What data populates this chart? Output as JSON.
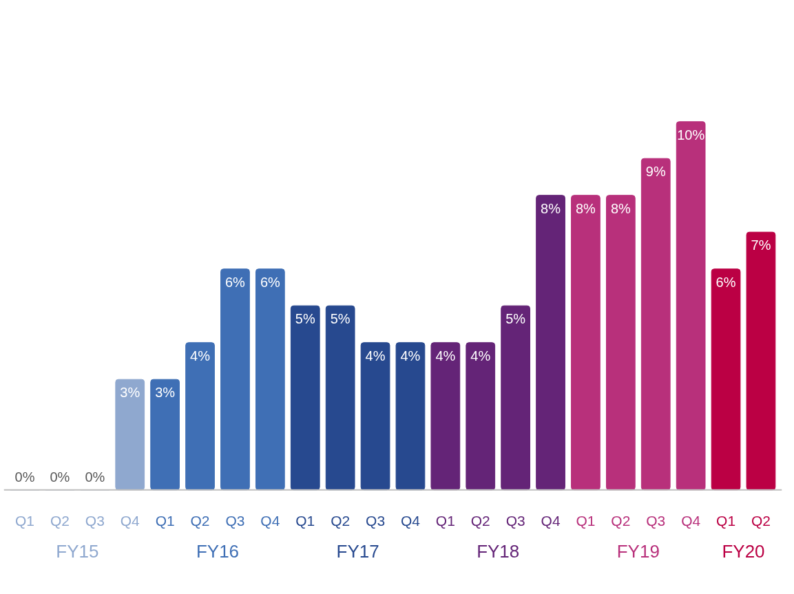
{
  "chart_data": {
    "type": "bar",
    "categories": [
      "Q1",
      "Q2",
      "Q3",
      "Q4",
      "Q1",
      "Q2",
      "Q3",
      "Q4",
      "Q1",
      "Q2",
      "Q3",
      "Q4",
      "Q1",
      "Q2",
      "Q3",
      "Q4",
      "Q1",
      "Q2",
      "Q3",
      "Q4",
      "Q1",
      "Q2"
    ],
    "values": [
      0,
      0,
      0,
      3,
      3,
      4,
      6,
      6,
      5,
      5,
      4,
      4,
      4,
      4,
      5,
      8,
      8,
      8,
      9,
      10,
      6,
      7
    ],
    "value_labels": [
      "0%",
      "0%",
      "0%",
      "3%",
      "3%",
      "4%",
      "6%",
      "6%",
      "5%",
      "5%",
      "4%",
      "4%",
      "4%",
      "4%",
      "5%",
      "8%",
      "8%",
      "8%",
      "9%",
      "10%",
      "6%",
      "7%"
    ],
    "colors": [
      "#8fa8cf",
      "#8fa8cf",
      "#8fa8cf",
      "#8fa8cf",
      "#3f6fb5",
      "#3f6fb5",
      "#3f6fb5",
      "#3f6fb5",
      "#27498f",
      "#27498f",
      "#27498f",
      "#27498f",
      "#642477",
      "#642477",
      "#642477",
      "#642477",
      "#b8307b",
      "#b8307b",
      "#b8307b",
      "#b8307b",
      "#bb0044",
      "#bb0044"
    ],
    "annotations": [
      "FY15",
      "FY16",
      "FY17",
      "FY18",
      "FY19",
      "FY20"
    ],
    "grid": false
  }
}
